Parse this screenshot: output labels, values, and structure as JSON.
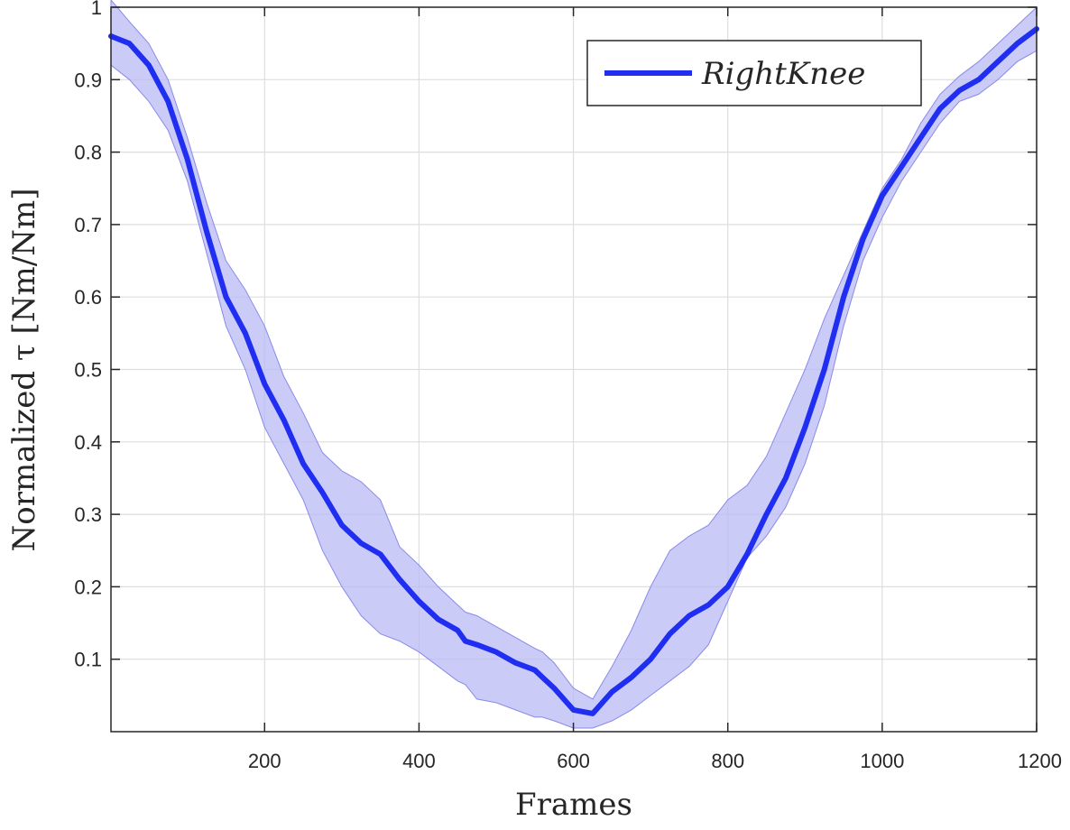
{
  "chart_data": {
    "type": "line",
    "title": "",
    "xlabel": "Frames",
    "ylabel": "Normalized τ [Nm/Nm]",
    "xlim": [
      1,
      1200
    ],
    "ylim": [
      0,
      1
    ],
    "xticks": [
      200,
      400,
      600,
      800,
      1000,
      1200
    ],
    "yticks": [
      0.1,
      0.2,
      0.3,
      0.4,
      0.5,
      0.6,
      0.7,
      0.8,
      0.9,
      1
    ],
    "xtick_labels": [
      "200",
      "400",
      "600",
      "800",
      "1000",
      "1200"
    ],
    "ytick_labels": [
      "0.1",
      "0.2",
      "0.3",
      "0.4",
      "0.5",
      "0.6",
      "0.7",
      "0.8",
      "0.9",
      "1"
    ],
    "grid": true,
    "legend_position": "top-right",
    "series": [
      {
        "name": "RightKnee",
        "color": "#1f2ef0",
        "band_color": "#b9b9f5",
        "x": [
          1,
          25,
          50,
          75,
          100,
          125,
          150,
          175,
          200,
          225,
          250,
          275,
          300,
          325,
          350,
          375,
          400,
          425,
          450,
          460,
          475,
          500,
          525,
          550,
          560,
          575,
          600,
          625,
          650,
          675,
          700,
          725,
          750,
          775,
          800,
          825,
          850,
          875,
          900,
          925,
          950,
          975,
          1000,
          1025,
          1050,
          1075,
          1100,
          1125,
          1150,
          1175,
          1200
        ],
        "mean": [
          0.96,
          0.95,
          0.92,
          0.87,
          0.79,
          0.69,
          0.6,
          0.55,
          0.48,
          0.43,
          0.37,
          0.33,
          0.285,
          0.26,
          0.245,
          0.21,
          0.18,
          0.155,
          0.14,
          0.125,
          0.12,
          0.11,
          0.095,
          0.085,
          0.075,
          0.06,
          0.03,
          0.025,
          0.055,
          0.075,
          0.1,
          0.135,
          0.16,
          0.175,
          0.2,
          0.245,
          0.3,
          0.35,
          0.42,
          0.5,
          0.6,
          0.68,
          0.74,
          0.78,
          0.82,
          0.86,
          0.885,
          0.9,
          0.925,
          0.95,
          0.97
        ],
        "upper": [
          1.01,
          0.98,
          0.95,
          0.9,
          0.82,
          0.73,
          0.65,
          0.61,
          0.56,
          0.49,
          0.44,
          0.385,
          0.36,
          0.345,
          0.32,
          0.255,
          0.23,
          0.2,
          0.175,
          0.165,
          0.16,
          0.145,
          0.13,
          0.115,
          0.11,
          0.095,
          0.06,
          0.045,
          0.09,
          0.14,
          0.2,
          0.25,
          0.27,
          0.285,
          0.32,
          0.34,
          0.38,
          0.44,
          0.5,
          0.57,
          0.63,
          0.69,
          0.75,
          0.79,
          0.84,
          0.88,
          0.905,
          0.925,
          0.95,
          0.975,
          1.0
        ],
        "lower": [
          0.92,
          0.9,
          0.87,
          0.83,
          0.76,
          0.66,
          0.56,
          0.5,
          0.42,
          0.37,
          0.32,
          0.25,
          0.2,
          0.16,
          0.135,
          0.125,
          0.11,
          0.09,
          0.07,
          0.065,
          0.045,
          0.04,
          0.03,
          0.02,
          0.02,
          0.015,
          0.005,
          0.005,
          0.015,
          0.03,
          0.05,
          0.07,
          0.09,
          0.12,
          0.18,
          0.24,
          0.27,
          0.31,
          0.37,
          0.45,
          0.56,
          0.65,
          0.71,
          0.76,
          0.8,
          0.84,
          0.87,
          0.88,
          0.9,
          0.925,
          0.94
        ]
      }
    ]
  }
}
